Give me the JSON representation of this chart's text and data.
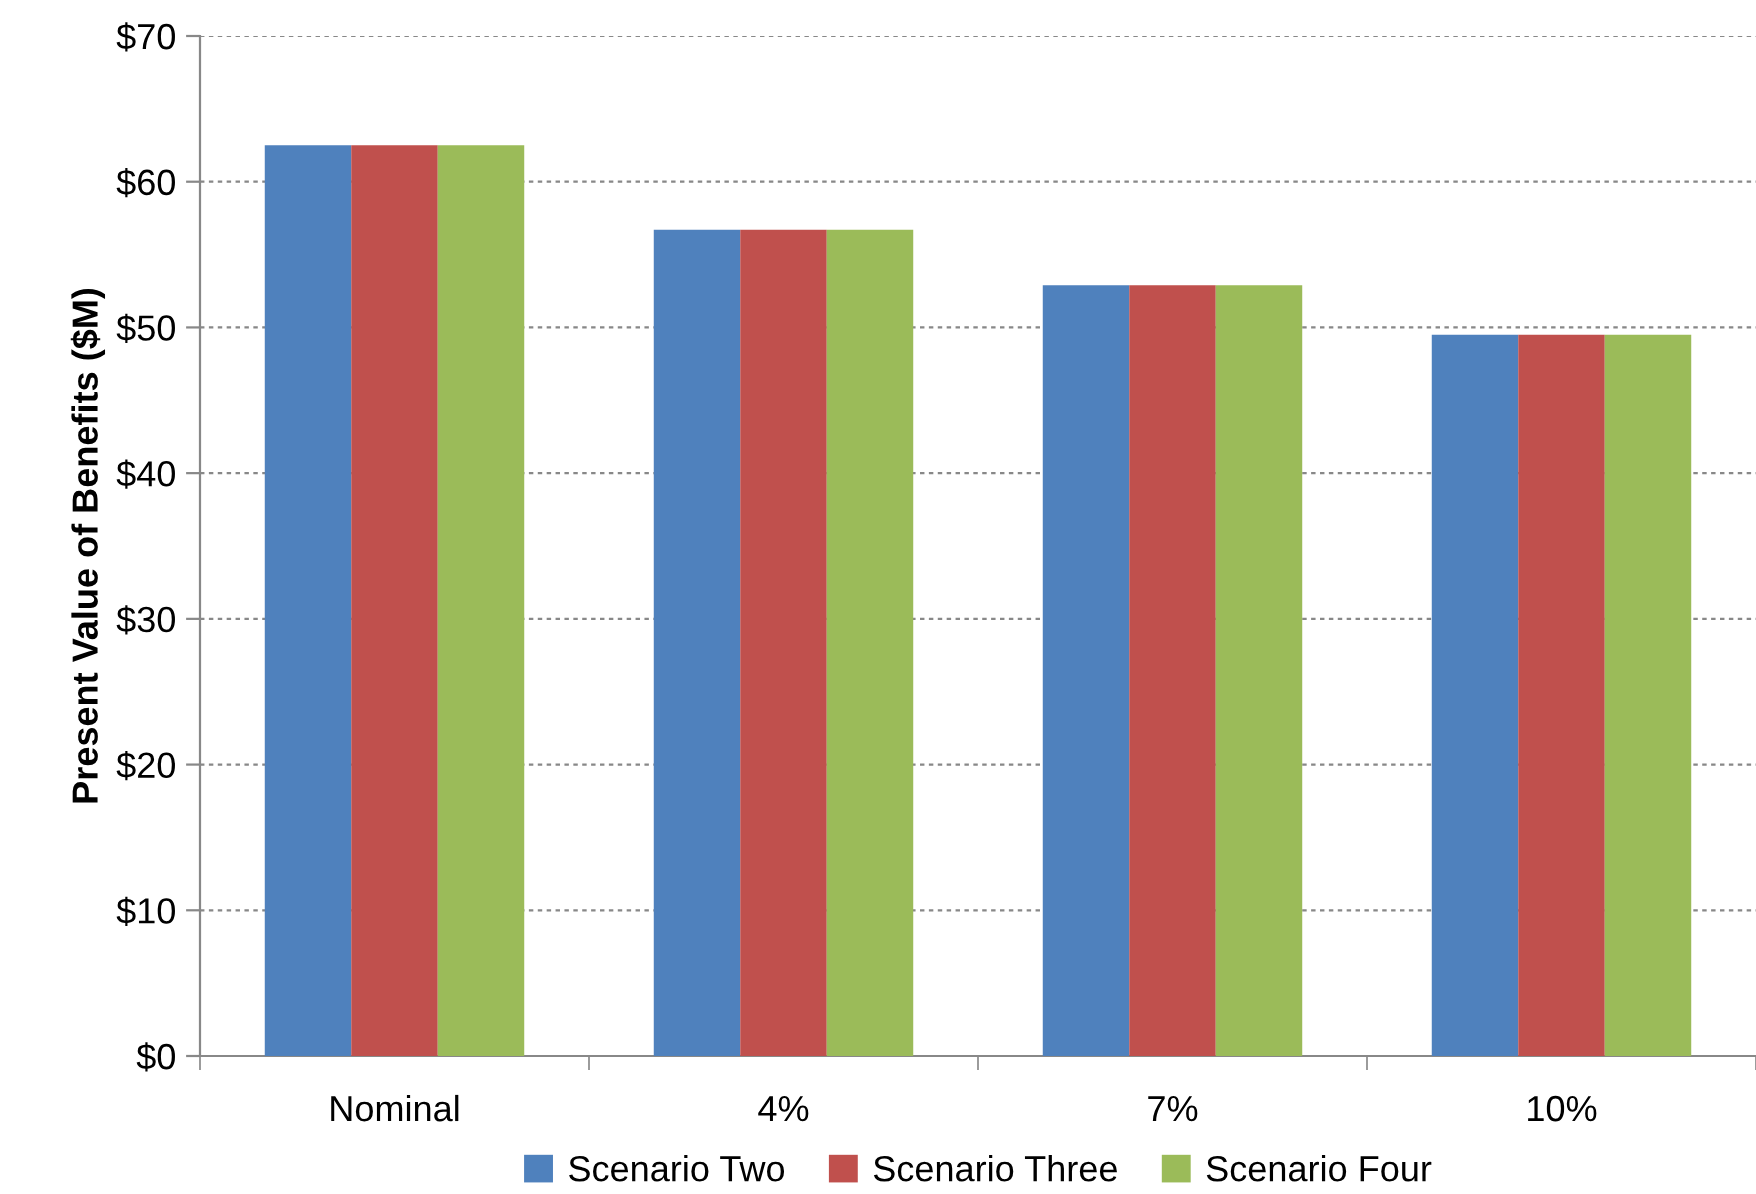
{
  "chart_data": {
    "type": "bar",
    "ylabel": "Present Value of Benefits ($M)",
    "categories": [
      "Nominal",
      "4%",
      "7%",
      "10%"
    ],
    "series": [
      {
        "name": "Scenario Two",
        "color": "#4f81bd",
        "values": [
          62.5,
          56.7,
          52.9,
          49.5
        ]
      },
      {
        "name": "Scenario Three",
        "color": "#c0504d",
        "values": [
          62.5,
          56.7,
          52.9,
          49.5
        ]
      },
      {
        "name": "Scenario Four",
        "color": "#9bbb59",
        "values": [
          62.5,
          56.7,
          52.9,
          49.5
        ]
      }
    ],
    "ylim": [
      0,
      70
    ],
    "yticks": [
      {
        "value": 0,
        "label": "$0"
      },
      {
        "value": 10,
        "label": "$10"
      },
      {
        "value": 20,
        "label": "$20"
      },
      {
        "value": 30,
        "label": "$30"
      },
      {
        "value": 40,
        "label": "$40"
      },
      {
        "value": 50,
        "label": "$50"
      },
      {
        "value": 60,
        "label": "$60"
      },
      {
        "value": 70,
        "label": "$70"
      }
    ],
    "grid": "y",
    "legend": "bottom"
  }
}
